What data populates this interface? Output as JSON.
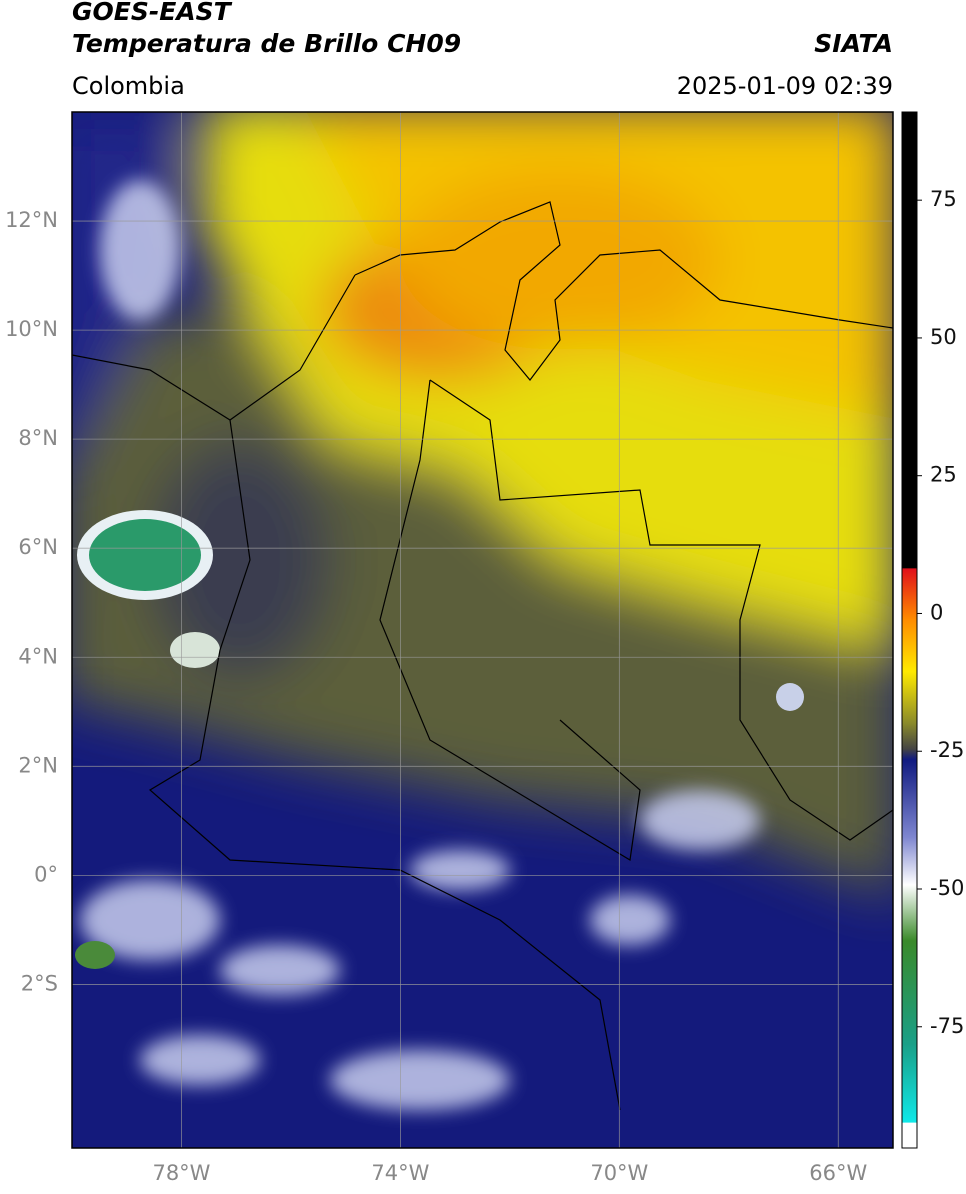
{
  "header": {
    "satellite": "GOES-EAST",
    "product": "Temperatura de Brillo CH09",
    "source": "SIATA",
    "region": "Colombia",
    "datetime": "2025-01-09 02:39"
  },
  "map": {
    "xlim": [
      -80,
      -65
    ],
    "ylim": [
      -5,
      14
    ],
    "xticks": [
      {
        "value": -78,
        "label": "78°W"
      },
      {
        "value": -74,
        "label": "74°W"
      },
      {
        "value": -70,
        "label": "70°W"
      },
      {
        "value": -66,
        "label": "66°W"
      }
    ],
    "yticks": [
      {
        "value": 12,
        "label": "12°N"
      },
      {
        "value": 10,
        "label": "10°N"
      },
      {
        "value": 8,
        "label": "8°N"
      },
      {
        "value": 6,
        "label": "6°N"
      },
      {
        "value": 4,
        "label": "4°N"
      },
      {
        "value": 2,
        "label": "2°N"
      },
      {
        "value": 0,
        "label": "0°"
      },
      {
        "value": -2,
        "label": "2°S"
      }
    ]
  },
  "colorbar": {
    "lim": [
      -97,
      91
    ],
    "ticks": [
      75,
      50,
      25,
      0,
      -25,
      -50,
      -75
    ]
  }
}
